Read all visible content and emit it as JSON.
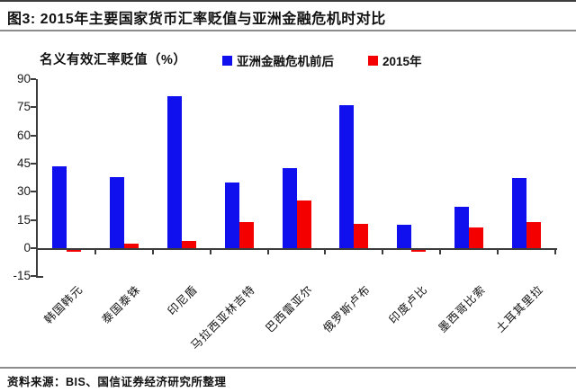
{
  "header": {
    "title": "图3: 2015年主要国家货币汇率贬值与亚洲金融危机时对比"
  },
  "chart_data": {
    "type": "bar",
    "title": "2015年主要国家货币汇率贬值与亚洲金融危机时对比",
    "ylabel": "名义有效汇率贬值（%）",
    "xlabel": "",
    "ylim": [
      -15,
      90
    ],
    "ytick_step": 15,
    "grid": false,
    "legend_position": "top",
    "categories": [
      "韩国韩元",
      "泰国泰铢",
      "印尼盾",
      "马拉西亚林吉特",
      "巴西雷亚尔",
      "俄罗斯卢布",
      "印度卢比",
      "墨西哥比索",
      "土耳其里拉"
    ],
    "series": [
      {
        "name": "亚洲金融危机前后",
        "color": "#1010ee",
        "values": [
          43.5,
          38,
          81,
          35,
          42.5,
          76,
          12.5,
          22,
          37.5
        ]
      },
      {
        "name": "2015年",
        "color": "#f40000",
        "values": [
          -1,
          2.5,
          4,
          14,
          25.5,
          13,
          -1,
          11,
          14
        ]
      }
    ]
  },
  "footer": {
    "source": "资料来源：BIS、国信证券经济研究所整理"
  },
  "colors": {
    "axis": "#3c3c3c",
    "top_rule": "#3d3d3d",
    "gray_rule": "#8c8c8c",
    "series_crisis": "#1010ee",
    "series_2015": "#f40000"
  }
}
